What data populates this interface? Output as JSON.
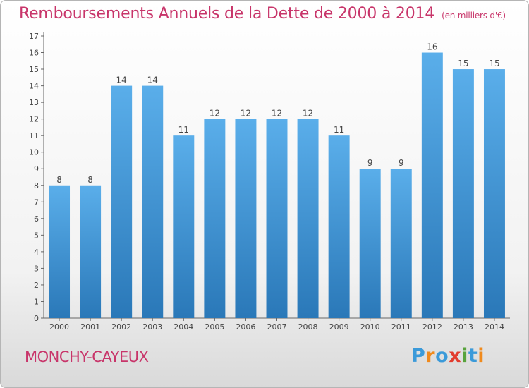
{
  "title": "Remboursements Annuels de la Dette de 2000 à 2014",
  "unit_note": "(en milliers d'€)",
  "location": "MONCHY-CAYEUX",
  "logo_text": "Proxiti",
  "colors": {
    "title": "#c8356a",
    "bar_top": "#5aaeea",
    "bar_bottom": "#2a78b8",
    "logo": [
      "#3b9ad9",
      "#f08a1c",
      "#3b9ad9",
      "#e23c2e",
      "#58a33c",
      "#3b9ad9",
      "#f08a1c"
    ]
  },
  "chart_data": {
    "type": "bar",
    "title": "Remboursements Annuels de la Dette de 2000 à 2014",
    "xlabel": "",
    "ylabel": "",
    "categories": [
      "2000",
      "2001",
      "2002",
      "2003",
      "2004",
      "2005",
      "2006",
      "2007",
      "2008",
      "2009",
      "2010",
      "2011",
      "2012",
      "2013",
      "2014"
    ],
    "values": [
      8,
      8,
      14,
      14,
      11,
      12,
      12,
      12,
      12,
      11,
      9,
      9,
      16,
      15,
      15
    ],
    "ylim": [
      0,
      17
    ],
    "yticks": [
      0,
      1,
      2,
      3,
      4,
      5,
      6,
      7,
      8,
      9,
      10,
      11,
      12,
      13,
      14,
      15,
      16,
      17
    ],
    "grid": false,
    "data_labels": true
  }
}
